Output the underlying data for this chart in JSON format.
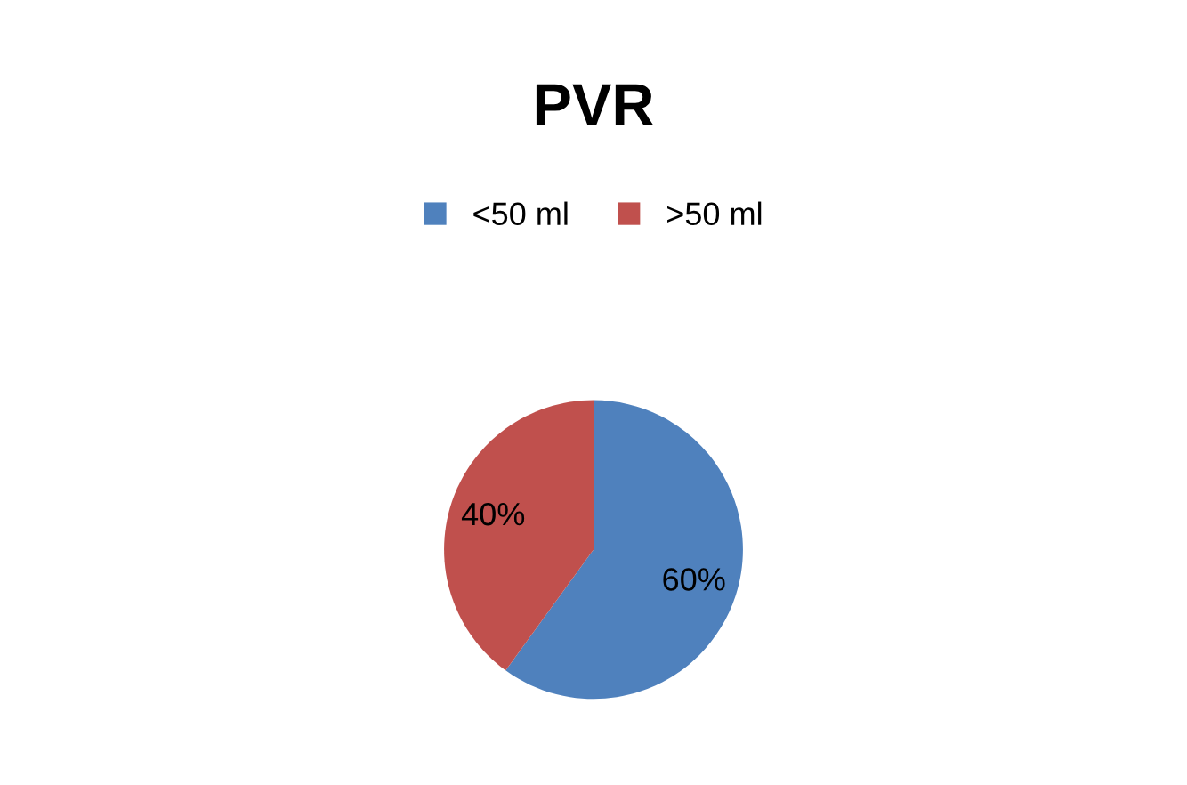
{
  "chart_data": {
    "type": "pie",
    "title": "PVR",
    "categories": [
      "<50 ml",
      ">50 ml"
    ],
    "values": [
      60,
      40
    ],
    "colors": [
      "#4f81bd",
      "#c0504d"
    ],
    "value_labels": [
      "60%",
      "40%"
    ],
    "legend": "top"
  }
}
